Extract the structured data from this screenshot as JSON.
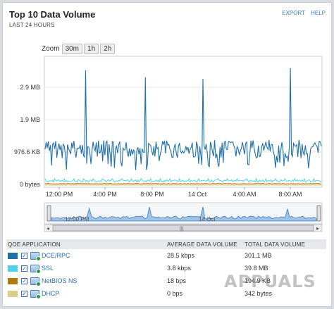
{
  "header": {
    "title": "Top 10 Data Volume",
    "subtitle": "LAST 24 HOURS",
    "export": "EXPORT",
    "help": "HELP"
  },
  "zoom": {
    "label": "Zoom",
    "options": [
      "30m",
      "1h",
      "2h"
    ]
  },
  "chart_data": {
    "type": "line",
    "y_ticks": [
      "2.9 MB",
      "1.9 MB",
      "976.6 KB",
      "0 bytes"
    ],
    "x_ticks": [
      "12:00 PM",
      "4:00 PM",
      "8:00 PM",
      "14 Oct",
      "4:00 AM",
      "8:00 AM"
    ],
    "navigator_labels": [
      "12:00 PM",
      "14 Oct"
    ],
    "series": [
      {
        "name": "DCE/RPC",
        "color": "#1f6fa8",
        "baseline_bytes": 976600,
        "spikes_bytes": [
          2900000,
          3000000,
          3000000,
          3100000
        ]
      },
      {
        "name": "SSL",
        "color": "#4fd1ee",
        "baseline_bytes": 120000
      },
      {
        "name": "NetBIOS NS",
        "color": "#c88a14",
        "baseline_bytes": 60000
      },
      {
        "name": "DHCP",
        "color": "#d8cf8a",
        "baseline_bytes": 0
      }
    ]
  },
  "table": {
    "headers": [
      "QOE APPLICATION",
      "AVERAGE DATA VOLUME",
      "TOTAL DATA VOLUME"
    ],
    "rows": [
      {
        "app": "DCE/RPC",
        "avg": "28.5 kbps",
        "total": "301.1 MB",
        "color": "#1f6fa8"
      },
      {
        "app": "SSL",
        "avg": "3.8 kbps",
        "total": "39.8 MB",
        "color": "#4fd1ee"
      },
      {
        "app": "NetBIOS NS",
        "avg": "18 bps",
        "total": "194.9 KB",
        "color": "#b07a10"
      },
      {
        "app": "DHCP",
        "avg": "0 bps",
        "total": "342 bytes",
        "color": "#d8cf8a"
      }
    ]
  },
  "watermark": "APPUALS"
}
